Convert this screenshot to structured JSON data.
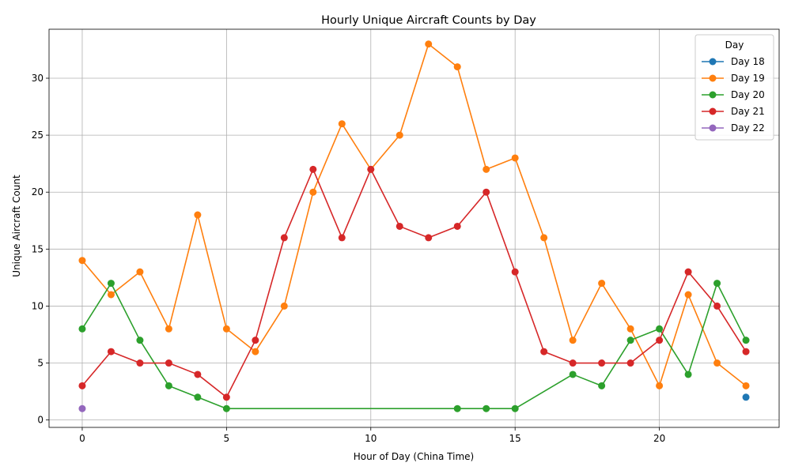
{
  "chart_data": {
    "type": "line",
    "title": "Hourly Unique Aircraft Counts by Day",
    "xlabel": "Hour of Day (China Time)",
    "ylabel": "Unique Aircraft Count",
    "xlim": [
      -1.15,
      24.15
    ],
    "ylim": [
      -0.65,
      34.3
    ],
    "xticks": [
      0,
      5,
      10,
      15,
      20
    ],
    "yticks": [
      0,
      5,
      10,
      15,
      20,
      25,
      30
    ],
    "grid": true,
    "legend": {
      "title": "Day",
      "placement": "top-right"
    },
    "series": [
      {
        "name": "Day 18",
        "color": "#1f77b4",
        "points": [
          [
            23,
            2
          ]
        ]
      },
      {
        "name": "Day 19",
        "color": "#ff7f0e",
        "points": [
          [
            0,
            14
          ],
          [
            1,
            11
          ],
          [
            2,
            13
          ],
          [
            3,
            8
          ],
          [
            4,
            18
          ],
          [
            5,
            8
          ],
          [
            6,
            6
          ],
          [
            7,
            10
          ],
          [
            8,
            20
          ],
          [
            9,
            26
          ],
          [
            10,
            22
          ],
          [
            11,
            25
          ],
          [
            12,
            33
          ],
          [
            13,
            31
          ],
          [
            14,
            22
          ],
          [
            15,
            23
          ],
          [
            16,
            16
          ],
          [
            17,
            7
          ],
          [
            18,
            12
          ],
          [
            19,
            8
          ],
          [
            20,
            3
          ],
          [
            21,
            11
          ],
          [
            22,
            5
          ],
          [
            23,
            3
          ]
        ]
      },
      {
        "name": "Day 20",
        "color": "#2ca02c",
        "points": [
          [
            0,
            8
          ],
          [
            1,
            12
          ],
          [
            2,
            7
          ],
          [
            3,
            3
          ],
          [
            4,
            2
          ],
          [
            5,
            1
          ],
          [
            13,
            1
          ],
          [
            14,
            1
          ],
          [
            15,
            1
          ],
          [
            17,
            4
          ],
          [
            18,
            3
          ],
          [
            19,
            7
          ],
          [
            20,
            8
          ],
          [
            21,
            4
          ],
          [
            22,
            12
          ],
          [
            23,
            7
          ]
        ]
      },
      {
        "name": "Day 21",
        "color": "#d62728",
        "points": [
          [
            0,
            3
          ],
          [
            1,
            6
          ],
          [
            2,
            5
          ],
          [
            3,
            5
          ],
          [
            4,
            4
          ],
          [
            5,
            2
          ],
          [
            6,
            7
          ],
          [
            7,
            16
          ],
          [
            8,
            22
          ],
          [
            9,
            16
          ],
          [
            10,
            22
          ],
          [
            11,
            17
          ],
          [
            12,
            16
          ],
          [
            13,
            17
          ],
          [
            14,
            20
          ],
          [
            15,
            13
          ],
          [
            16,
            6
          ],
          [
            17,
            5
          ],
          [
            18,
            5
          ],
          [
            19,
            5
          ],
          [
            20,
            7
          ],
          [
            21,
            13
          ],
          [
            22,
            10
          ],
          [
            23,
            6
          ]
        ]
      },
      {
        "name": "Day 22",
        "color": "#9467bd",
        "points": [
          [
            0,
            1
          ]
        ]
      }
    ]
  }
}
